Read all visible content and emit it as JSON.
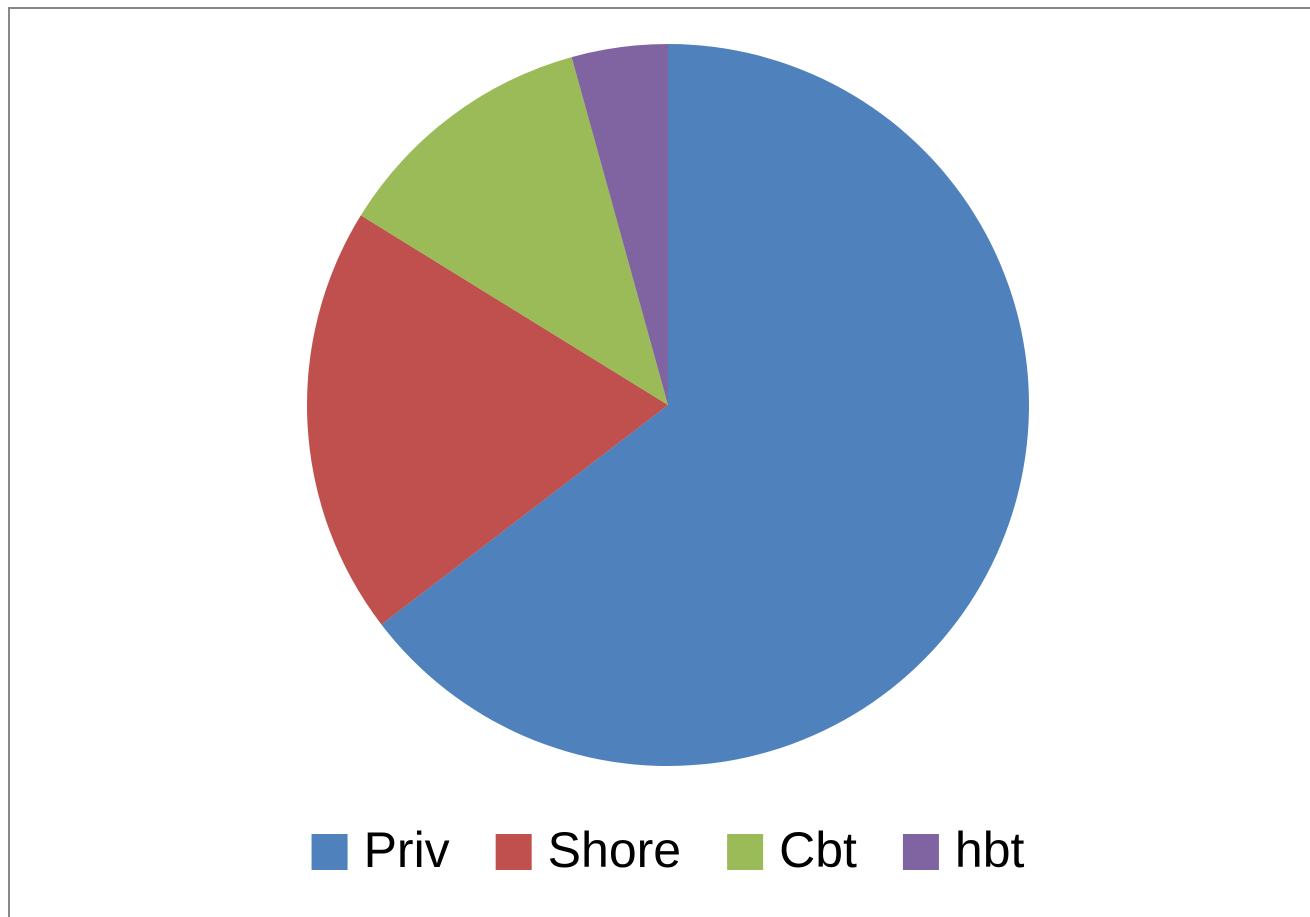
{
  "chart_data": {
    "type": "pie",
    "categories": [
      "Priv",
      "Shore",
      "Cbt",
      "hbt"
    ],
    "values": [
      64.6,
      19.2,
      11.9,
      4.3
    ],
    "colors": [
      "#4f81bd",
      "#c0504d",
      "#9bbb59",
      "#8064a2"
    ],
    "legend": "bottom"
  }
}
